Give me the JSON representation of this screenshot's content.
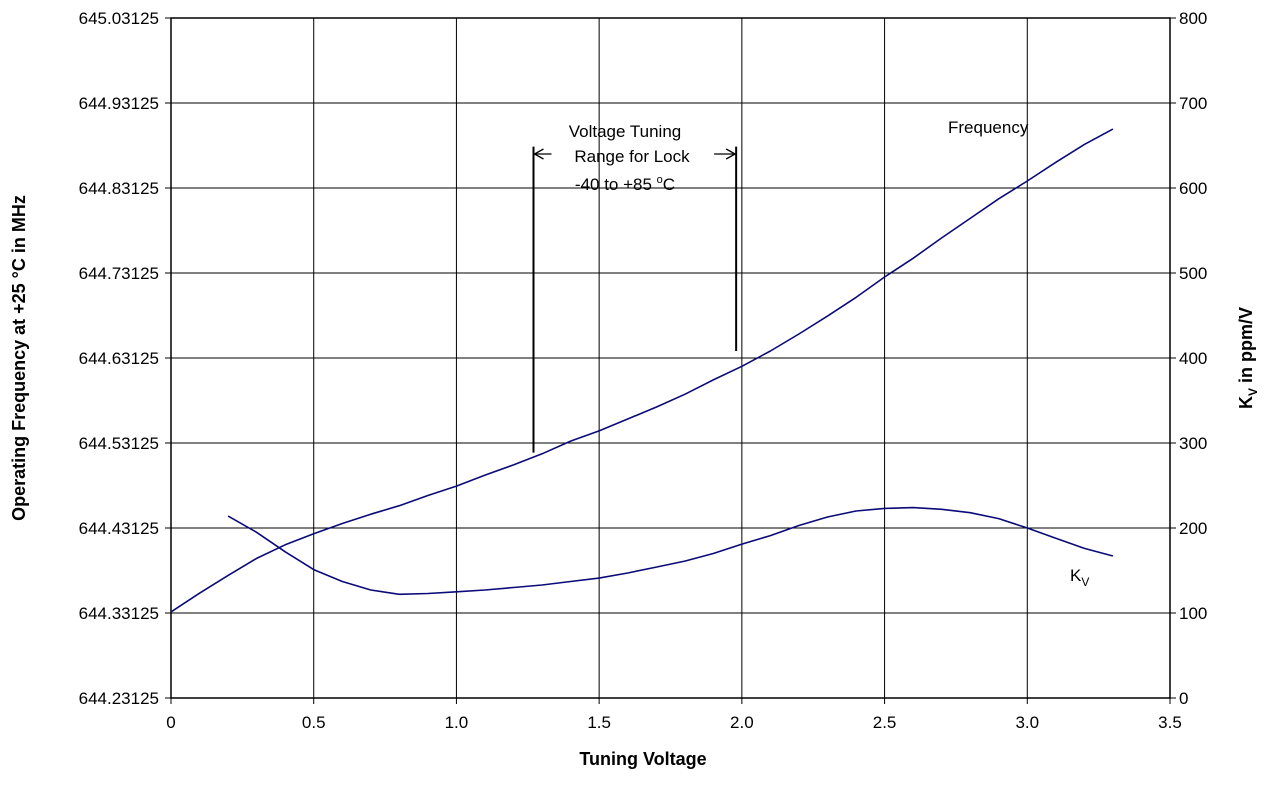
{
  "chart_data": {
    "type": "line",
    "xlabel": "Tuning Voltage",
    "ylabel_left": "Operating Frequency at +25 °C in MHz",
    "ylabel_right_main": "K",
    "ylabel_right_sub": "V",
    "ylabel_right_rest": " in ppm/V",
    "xlim": [
      0,
      3.5
    ],
    "ylim_left": [
      644.23125,
      645.03125
    ],
    "ylim_right": [
      0,
      800
    ],
    "grid": true,
    "x_ticks": [
      "0",
      "0.5",
      "1.0",
      "1.5",
      "2.0",
      "2.5",
      "3.0",
      "3.5"
    ],
    "x_tick_values": [
      0,
      0.5,
      1.0,
      1.5,
      2.0,
      2.5,
      3.0,
      3.5
    ],
    "y_left_ticks": [
      "644.23125",
      "644.33125",
      "644.43125",
      "644.53125",
      "644.63125",
      "644.73125",
      "644.83125",
      "644.93125",
      "645.03125"
    ],
    "y_left_tick_values": [
      644.23125,
      644.33125,
      644.43125,
      644.53125,
      644.63125,
      644.73125,
      644.83125,
      644.93125,
      645.03125
    ],
    "y_right_ticks": [
      "0",
      "100",
      "200",
      "300",
      "400",
      "500",
      "600",
      "700",
      "800"
    ],
    "y_right_tick_values": [
      0,
      100,
      200,
      300,
      400,
      500,
      600,
      700,
      800
    ],
    "series": [
      {
        "name": "Frequency",
        "axis": "left",
        "color": "#0a0a78",
        "x": [
          0,
          0.1,
          0.2,
          0.3,
          0.4,
          0.5,
          0.6,
          0.7,
          0.8,
          0.9,
          1.0,
          1.1,
          1.2,
          1.3,
          1.4,
          1.5,
          1.6,
          1.7,
          1.8,
          1.9,
          2.0,
          2.1,
          2.2,
          2.3,
          2.4,
          2.5,
          2.6,
          2.7,
          2.8,
          2.9,
          3.0,
          3.1,
          3.2,
          3.3
        ],
        "y": [
          644.3325,
          644.3545,
          644.3755,
          644.3955,
          644.4115,
          644.4245,
          644.4365,
          644.4475,
          644.4575,
          644.4695,
          644.4805,
          644.4935,
          644.5055,
          644.5185,
          644.5335,
          644.5455,
          644.5595,
          644.5735,
          644.5885,
          644.6055,
          644.6215,
          644.6395,
          644.6595,
          644.6805,
          644.7025,
          644.7265,
          644.7485,
          644.7725,
          644.7955,
          644.8185,
          644.8395,
          644.8615,
          644.8825,
          644.9005
        ]
      },
      {
        "name": "K",
        "name_sub": "V",
        "axis": "right",
        "color": "#0a0a78",
        "x": [
          0.2,
          0.3,
          0.4,
          0.5,
          0.6,
          0.7,
          0.8,
          0.9,
          1.0,
          1.1,
          1.2,
          1.3,
          1.4,
          1.5,
          1.6,
          1.7,
          1.8,
          1.9,
          2.0,
          2.1,
          2.2,
          2.3,
          2.4,
          2.5,
          2.6,
          2.7,
          2.8,
          2.9,
          3.0,
          3.1,
          3.2,
          3.3
        ],
        "y": [
          214,
          195,
          172,
          151,
          137,
          127,
          122,
          123,
          125,
          127,
          130,
          133,
          137,
          141,
          147,
          154,
          161,
          170,
          181,
          191,
          203,
          213,
          220,
          223,
          224,
          222,
          218,
          211,
          200,
          188,
          176,
          167
        ]
      }
    ],
    "annotations": {
      "lock_range_line1": "Voltage Tuning",
      "lock_range_line2": "Range for Lock",
      "lock_range_line3_a": "-40 to +85 ",
      "lock_range_line3_deg": "o",
      "lock_range_line3_c": "C",
      "lock_range_vlines_x": [
        1.27,
        1.98
      ],
      "lock_range_vlines_y_left": [
        644.52,
        644.88
      ],
      "frequency_label": "Frequency",
      "kv_label_main": "K",
      "kv_label_sub": "V"
    }
  }
}
